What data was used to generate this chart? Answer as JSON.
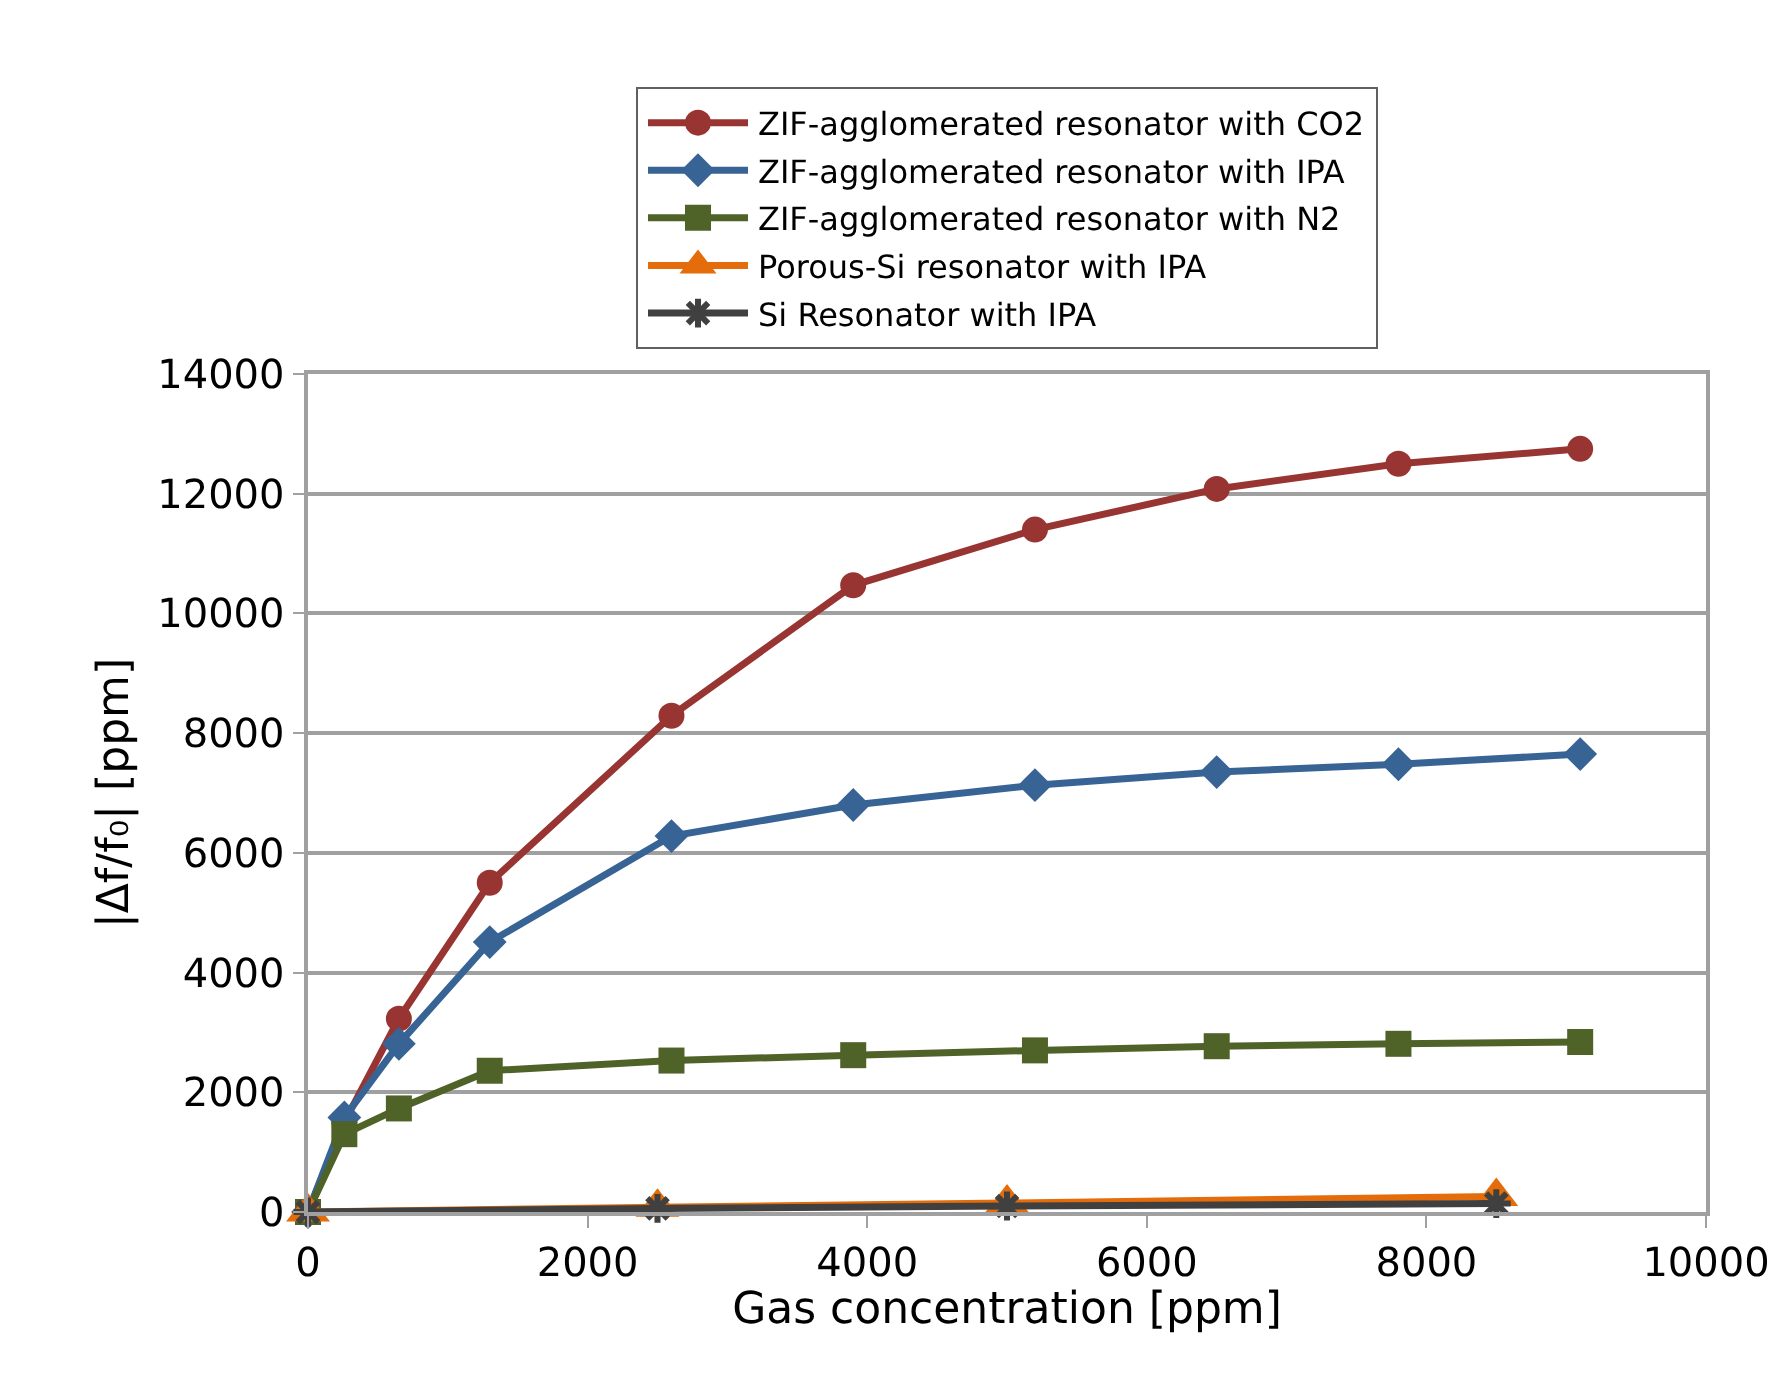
{
  "chart_data": {
    "type": "line",
    "xlabel": "Gas concentration [ppm]",
    "ylabel": "|Δf/f₀| [ppm]",
    "xlim": [
      0,
      10000
    ],
    "xticks": [
      0,
      2000,
      4000,
      6000,
      8000,
      10000
    ],
    "ylim": [
      0,
      14000
    ],
    "yticks": [
      0,
      2000,
      4000,
      6000,
      8000,
      10000,
      12000,
      14000
    ],
    "grid": "y",
    "legend": "top",
    "line_style": "solid",
    "series": [
      {
        "name": "ZIF-agglomerated resonator with CO2",
        "color": "#983532",
        "marker": "circle",
        "x": [
          0,
          260,
          650,
          1300,
          2600,
          3900,
          5200,
          6500,
          7800,
          9100
        ],
        "values": [
          0,
          1500,
          3230,
          5500,
          8290,
          10470,
          11400,
          12080,
          12500,
          12750
        ]
      },
      {
        "name": "ZIF-agglomerated resonator with IPA",
        "color": "#386395",
        "marker": "diamond",
        "x": [
          0,
          260,
          650,
          1300,
          2600,
          3900,
          5200,
          6500,
          7800,
          9100
        ],
        "values": [
          0,
          1580,
          2810,
          4510,
          6280,
          6800,
          7130,
          7350,
          7480,
          7650
        ]
      },
      {
        "name": "ZIF-agglomerated resonator with N2",
        "color": "#4f6228",
        "marker": "square",
        "x": [
          0,
          260,
          650,
          1300,
          2600,
          3900,
          5200,
          6500,
          7800,
          9100
        ],
        "values": [
          0,
          1300,
          1730,
          2360,
          2530,
          2620,
          2700,
          2770,
          2810,
          2840
        ]
      },
      {
        "name": "Porous-Si resonator with IPA",
        "color": "#e46c0a",
        "marker": "triangle",
        "x": [
          0,
          2500,
          5000,
          8500
        ],
        "values": [
          0,
          80,
          150,
          260
        ]
      },
      {
        "name": "Si Resonator with IPA",
        "color": "#404040",
        "marker": "cross",
        "x": [
          0,
          2500,
          5000,
          8500
        ],
        "values": [
          0,
          60,
          100,
          140
        ]
      }
    ]
  }
}
